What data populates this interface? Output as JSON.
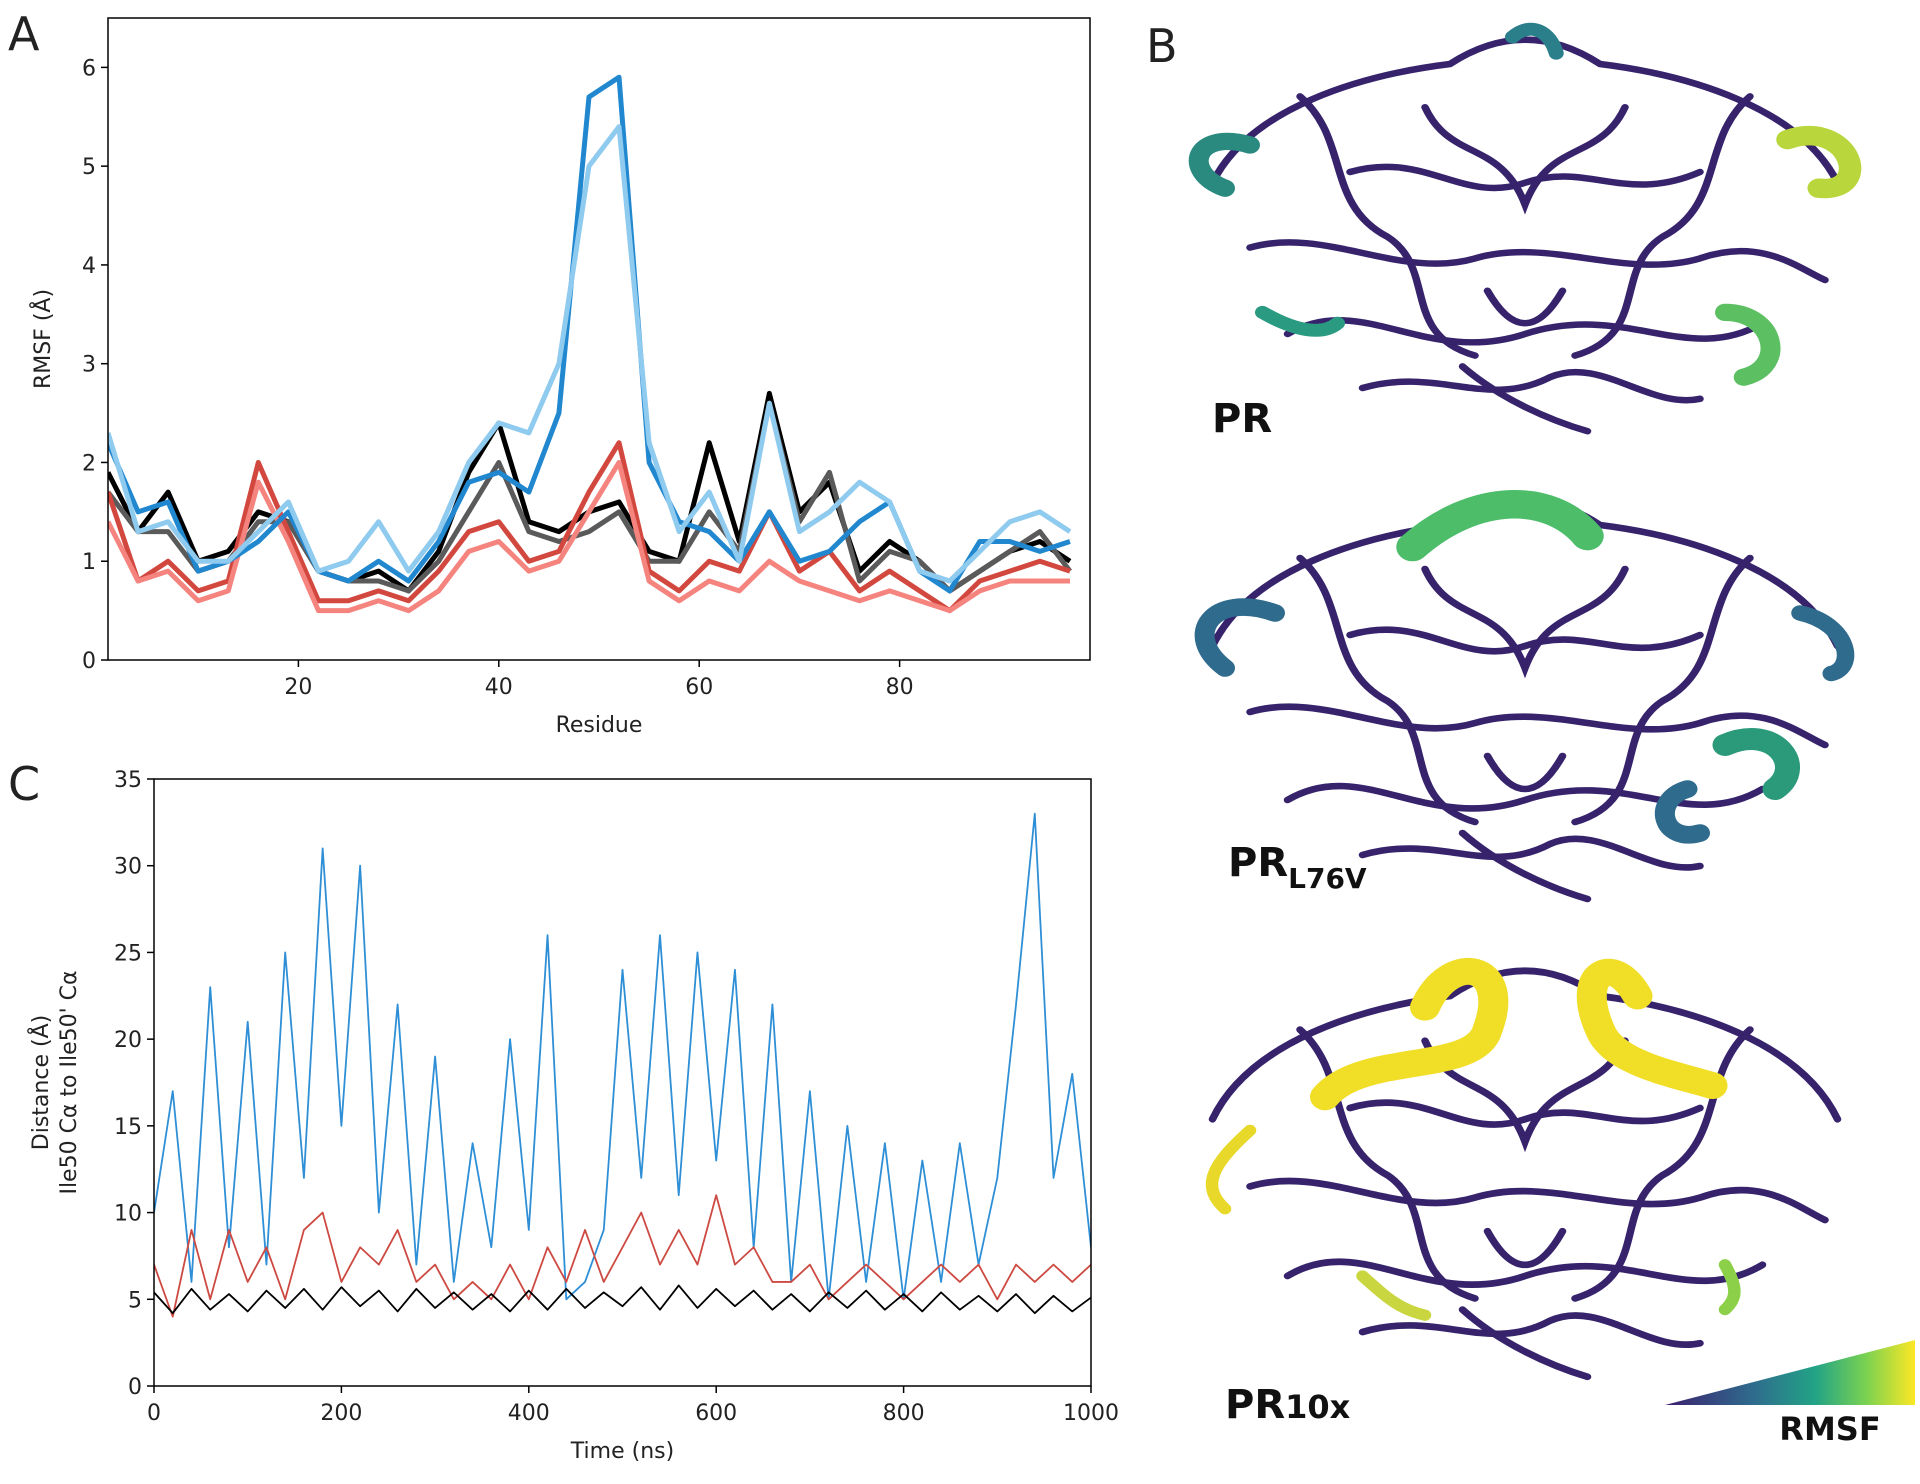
{
  "chart_data": [
    {
      "type": "line",
      "label": "A",
      "xlabel": "Residue",
      "ylabel": "RMSF (Å)",
      "x": [
        1,
        4,
        7,
        10,
        13,
        16,
        19,
        22,
        25,
        28,
        31,
        34,
        37,
        40,
        43,
        46,
        49,
        52,
        55,
        58,
        61,
        64,
        67,
        70,
        73,
        76,
        79,
        82,
        85,
        88,
        91,
        94,
        97
      ],
      "series": [
        {
          "color": "#000000",
          "values": [
            1.9,
            1.3,
            1.7,
            1.0,
            1.1,
            1.5,
            1.4,
            0.9,
            0.8,
            0.9,
            0.7,
            1.1,
            1.9,
            2.4,
            1.4,
            1.3,
            1.5,
            1.6,
            1.1,
            1.0,
            2.2,
            1.2,
            2.7,
            1.5,
            1.8,
            0.9,
            1.2,
            1.0,
            0.7,
            0.9,
            1.1,
            1.2,
            1.0
          ]
        },
        {
          "color": "#5a5a5a",
          "values": [
            1.7,
            1.3,
            1.3,
            0.9,
            1.0,
            1.4,
            1.4,
            0.9,
            0.8,
            0.8,
            0.7,
            1.0,
            1.5,
            2.0,
            1.3,
            1.2,
            1.3,
            1.5,
            1.0,
            1.0,
            1.5,
            1.1,
            2.6,
            1.4,
            1.9,
            0.8,
            1.1,
            1.0,
            0.7,
            0.9,
            1.1,
            1.3,
            0.9
          ]
        },
        {
          "color": "#d2483f",
          "values": [
            1.7,
            0.8,
            1.0,
            0.7,
            0.8,
            2.0,
            1.3,
            0.6,
            0.6,
            0.7,
            0.6,
            0.9,
            1.3,
            1.4,
            1.0,
            1.1,
            1.7,
            2.2,
            0.9,
            0.7,
            1.0,
            0.9,
            1.5,
            0.9,
            1.1,
            0.7,
            0.9,
            0.7,
            0.5,
            0.8,
            0.9,
            1.0,
            0.9
          ]
        },
        {
          "color": "#f5847f",
          "values": [
            1.4,
            0.8,
            0.9,
            0.6,
            0.7,
            1.8,
            1.2,
            0.5,
            0.5,
            0.6,
            0.5,
            0.7,
            1.1,
            1.2,
            0.9,
            1.0,
            1.5,
            2.0,
            0.8,
            0.6,
            0.8,
            0.7,
            1.0,
            0.8,
            0.7,
            0.6,
            0.7,
            0.6,
            0.5,
            0.7,
            0.8,
            0.8,
            0.8
          ]
        },
        {
          "color": "#2188d0",
          "values": [
            2.2,
            1.5,
            1.6,
            0.9,
            1.0,
            1.2,
            1.5,
            0.9,
            0.8,
            1.0,
            0.8,
            1.2,
            1.8,
            1.9,
            1.7,
            2.5,
            5.7,
            5.9,
            2.0,
            1.4,
            1.3,
            1.0,
            1.5,
            1.0,
            1.1,
            1.4,
            1.6,
            0.9,
            0.7,
            1.2,
            1.2,
            1.1,
            1.2
          ]
        },
        {
          "color": "#8fcaef",
          "values": [
            2.3,
            1.3,
            1.4,
            1.0,
            1.0,
            1.3,
            1.6,
            0.9,
            1.0,
            1.4,
            0.9,
            1.3,
            2.0,
            2.4,
            2.3,
            3.0,
            5.0,
            5.4,
            2.2,
            1.3,
            1.7,
            1.0,
            2.6,
            1.3,
            1.5,
            1.8,
            1.6,
            0.9,
            0.8,
            1.1,
            1.4,
            1.5,
            1.3
          ]
        }
      ],
      "xlim": [
        1,
        99
      ],
      "ylim": [
        0,
        6.5
      ],
      "xticks": [
        20,
        40,
        60,
        80
      ],
      "yticks": [
        0,
        1,
        2,
        3,
        4,
        5,
        6
      ]
    },
    {
      "type": "line",
      "label": "C",
      "xlabel": "Time (ns)",
      "ylabel": [
        "Distance (Å)",
        "Ile50 Cα to Ile50' Cα"
      ],
      "x": [
        0,
        20,
        40,
        60,
        80,
        100,
        120,
        140,
        160,
        180,
        200,
        220,
        240,
        260,
        280,
        300,
        320,
        340,
        360,
        380,
        400,
        420,
        440,
        460,
        480,
        500,
        520,
        540,
        560,
        580,
        600,
        620,
        640,
        660,
        680,
        700,
        720,
        740,
        760,
        780,
        800,
        820,
        840,
        860,
        880,
        900,
        920,
        940,
        960,
        980,
        1000
      ],
      "series": [
        {
          "color": "#2e8fd6",
          "values": [
            10,
            17,
            6,
            23,
            8,
            21,
            7,
            25,
            12,
            31,
            15,
            30,
            10,
            22,
            7,
            19,
            6,
            14,
            8,
            20,
            9,
            26,
            5,
            6,
            9,
            24,
            12,
            26,
            11,
            25,
            13,
            24,
            8,
            22,
            6,
            17,
            5,
            15,
            6,
            14,
            5,
            13,
            6,
            14,
            7,
            12,
            22,
            33,
            12,
            18,
            8
          ]
        },
        {
          "color": "#cd4a42",
          "values": [
            7,
            4,
            9,
            5,
            9,
            6,
            8,
            5,
            9,
            10,
            6,
            8,
            7,
            9,
            6,
            7,
            5,
            6,
            5,
            7,
            5,
            8,
            6,
            9,
            6,
            8,
            10,
            7,
            9,
            7,
            11,
            7,
            8,
            6,
            6,
            7,
            5,
            6,
            7,
            6,
            5,
            6,
            7,
            6,
            7,
            5,
            7,
            6,
            7,
            6,
            7
          ]
        },
        {
          "color": "#000000",
          "values": [
            5.4,
            4.2,
            5.6,
            4.4,
            5.3,
            4.3,
            5.5,
            4.5,
            5.6,
            4.4,
            5.7,
            4.6,
            5.5,
            4.3,
            5.6,
            4.5,
            5.4,
            4.4,
            5.3,
            4.3,
            5.5,
            4.4,
            5.6,
            4.5,
            5.4,
            4.6,
            5.7,
            4.4,
            5.8,
            4.5,
            5.6,
            4.6,
            5.5,
            4.4,
            5.3,
            4.3,
            5.4,
            4.5,
            5.5,
            4.4,
            5.3,
            4.3,
            5.4,
            4.4,
            5.2,
            4.3,
            5.3,
            4.2,
            5.2,
            4.3,
            5.1
          ]
        }
      ],
      "xlim": [
        0,
        1000
      ],
      "ylim": [
        0,
        35
      ],
      "xticks": [
        0,
        200,
        400,
        600,
        800,
        1000
      ],
      "yticks": [
        0,
        5,
        10,
        15,
        20,
        25,
        30,
        35
      ]
    }
  ],
  "panel_b": {
    "label": "B",
    "structures": [
      {
        "name": "PR"
      },
      {
        "name": "PR",
        "subscript": "L76V"
      },
      {
        "name": "PR",
        "subscript": "10x"
      }
    ],
    "colorbar_label": "RMSF"
  }
}
